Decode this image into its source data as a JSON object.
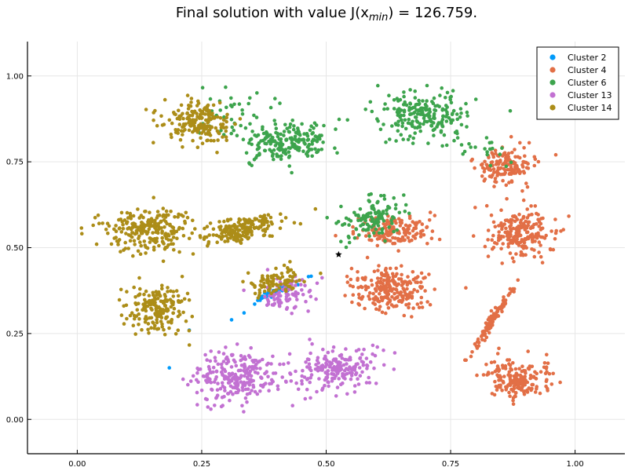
{
  "chart_data": {
    "type": "scatter",
    "title": "Final solution with value J(x",
    "title_sub": "min",
    "title_tail": ") = 126.759.",
    "xlabel": "",
    "ylabel": "",
    "xlim": [
      -0.1,
      1.1
    ],
    "ylim": [
      -0.1,
      1.1
    ],
    "xticks": [
      0.0,
      0.25,
      0.5,
      0.75,
      1.0
    ],
    "xtick_labels": [
      "0.00",
      "0.25",
      "0.50",
      "0.75",
      "1.00"
    ],
    "yticks": [
      0.0,
      0.25,
      0.5,
      0.75,
      1.0
    ],
    "ytick_labels": [
      "0.00",
      "0.25",
      "0.50",
      "0.75",
      "1.00"
    ],
    "grid": true,
    "legend_position": "top-right",
    "series": [
      {
        "name": "Cluster 2",
        "color": "#009AFA",
        "blobs": [
          {
            "cx": 0.395,
            "cy": 0.37,
            "sx": 0.025,
            "sy": 0.018,
            "n": 45,
            "corr": 0.95
          },
          {
            "cx": 0.31,
            "cy": 0.29,
            "sx": 0.0,
            "sy": 0.0,
            "n": 1,
            "corr": 0
          },
          {
            "cx": 0.225,
            "cy": 0.26,
            "sx": 0.0,
            "sy": 0.0,
            "n": 1,
            "corr": 0
          },
          {
            "cx": 0.185,
            "cy": 0.15,
            "sx": 0.0,
            "sy": 0.0,
            "n": 1,
            "corr": 0
          },
          {
            "cx": 0.335,
            "cy": 0.31,
            "sx": 0.0,
            "sy": 0.0,
            "n": 1,
            "corr": 0
          }
        ]
      },
      {
        "name": "Cluster 4",
        "color": "#E26F46",
        "blobs": [
          {
            "cx": 0.86,
            "cy": 0.74,
            "sx": 0.03,
            "sy": 0.028,
            "n": 150,
            "corr": 0
          },
          {
            "cx": 0.64,
            "cy": 0.55,
            "sx": 0.035,
            "sy": 0.025,
            "n": 160,
            "corr": 0.1
          },
          {
            "cx": 0.89,
            "cy": 0.54,
            "sx": 0.035,
            "sy": 0.035,
            "n": 220,
            "corr": 0
          },
          {
            "cx": 0.63,
            "cy": 0.38,
            "sx": 0.04,
            "sy": 0.035,
            "n": 230,
            "corr": 0
          },
          {
            "cx": 0.83,
            "cy": 0.28,
            "sx": 0.022,
            "sy": 0.05,
            "n": 110,
            "corr": 0.98
          },
          {
            "cx": 0.885,
            "cy": 0.115,
            "sx": 0.033,
            "sy": 0.028,
            "n": 180,
            "corr": 0
          }
        ]
      },
      {
        "name": "Cluster 6",
        "color": "#3DA44D",
        "blobs": [
          {
            "cx": 0.7,
            "cy": 0.885,
            "sx": 0.045,
            "sy": 0.035,
            "n": 200,
            "corr": 0
          },
          {
            "cx": 0.42,
            "cy": 0.81,
            "sx": 0.04,
            "sy": 0.028,
            "n": 200,
            "corr": 0.2
          },
          {
            "cx": 0.59,
            "cy": 0.585,
            "sx": 0.03,
            "sy": 0.035,
            "n": 120,
            "corr": 0.3
          },
          {
            "cx": 0.31,
            "cy": 0.89,
            "sx": 0.035,
            "sy": 0.04,
            "n": 40,
            "corr": 0
          },
          {
            "cx": 0.81,
            "cy": 0.79,
            "sx": 0.03,
            "sy": 0.02,
            "n": 25,
            "corr": -0.5
          }
        ]
      },
      {
        "name": "Cluster 13",
        "color": "#C271D2",
        "blobs": [
          {
            "cx": 0.32,
            "cy": 0.125,
            "sx": 0.045,
            "sy": 0.038,
            "n": 240,
            "corr": 0
          },
          {
            "cx": 0.52,
            "cy": 0.145,
            "sx": 0.045,
            "sy": 0.03,
            "n": 200,
            "corr": 0.25
          },
          {
            "cx": 0.415,
            "cy": 0.36,
            "sx": 0.03,
            "sy": 0.025,
            "n": 90,
            "corr": 0.2
          }
        ]
      },
      {
        "name": "Cluster 14",
        "color": "#AC8D18",
        "blobs": [
          {
            "cx": 0.245,
            "cy": 0.865,
            "sx": 0.033,
            "sy": 0.028,
            "n": 190,
            "corr": 0
          },
          {
            "cx": 0.14,
            "cy": 0.55,
            "sx": 0.045,
            "sy": 0.032,
            "n": 230,
            "corr": 0
          },
          {
            "cx": 0.33,
            "cy": 0.555,
            "sx": 0.04,
            "sy": 0.022,
            "n": 190,
            "corr": 0.55
          },
          {
            "cx": 0.16,
            "cy": 0.325,
            "sx": 0.03,
            "sy": 0.035,
            "n": 190,
            "corr": 0
          },
          {
            "cx": 0.4,
            "cy": 0.405,
            "sx": 0.03,
            "sy": 0.022,
            "n": 90,
            "corr": 0.4
          }
        ]
      }
    ],
    "highlight_point": {
      "x": 0.525,
      "y": 0.48,
      "color": "#000000"
    }
  }
}
